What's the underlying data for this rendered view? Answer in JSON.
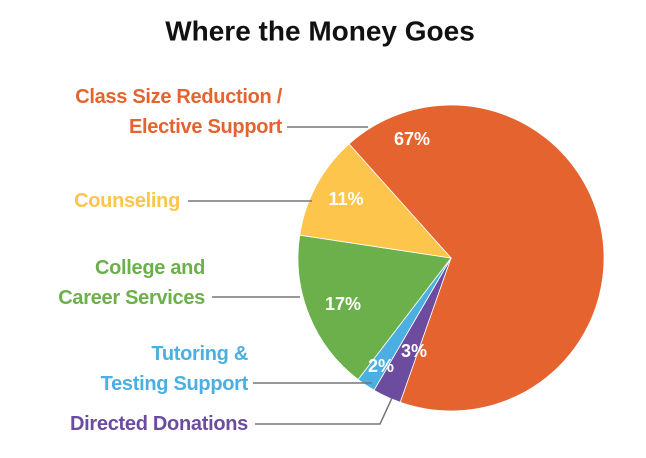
{
  "chart_data": {
    "type": "pie",
    "title": "Where the Money Goes",
    "categories": [
      "Class Size Reduction /\nElective Support",
      "Directed Donations",
      "Tutoring &\nTesting Support",
      "College and\nCareer Services",
      "Counseling"
    ],
    "values": [
      67,
      3,
      2,
      17,
      11
    ],
    "value_labels": [
      "67%",
      "3%",
      "2%",
      "17%",
      "11%"
    ],
    "colors": [
      "#e4632f",
      "#6b4c9f",
      "#4bafe1",
      "#6bb04a",
      "#fdc54c"
    ]
  }
}
